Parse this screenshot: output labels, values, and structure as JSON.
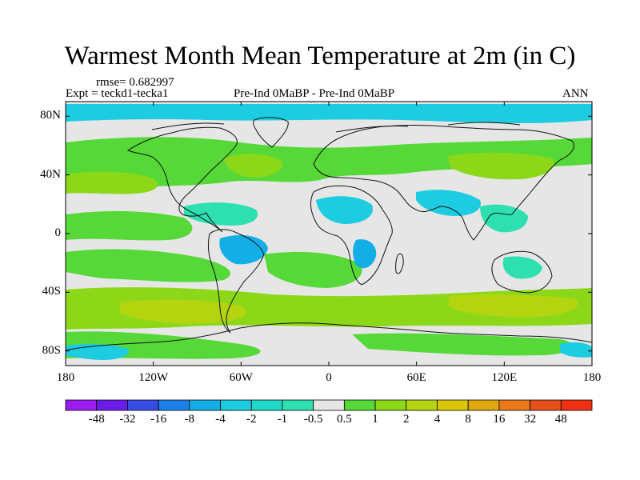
{
  "title": "Warmest Month Mean Temperature at 2m (in C)",
  "rmse": "rmse= 0.682997",
  "expt": "Expt = teckd1-tecka1",
  "center_label": "Pre-Ind 0MaBP - Pre-Ind 0MaBP",
  "right_label": "ANN",
  "lat_ticks": [
    "80N",
    "40N",
    "0",
    "40S",
    "80S"
  ],
  "lon_ticks": [
    "180",
    "120W",
    "60W",
    "0",
    "60E",
    "120E",
    "180"
  ],
  "colorbar": {
    "labels": [
      "-48",
      "-32",
      "-16",
      "-8",
      "-4",
      "-2",
      "-1",
      "-0.5",
      "0.5",
      "1",
      "2",
      "4",
      "8",
      "16",
      "32",
      "48"
    ],
    "colors": [
      "#9b1cf0",
      "#6a1ce8",
      "#3a4ce6",
      "#1d80e6",
      "#14aee6",
      "#1dcce0",
      "#20d8c8",
      "#2ee0b0",
      "#e6e6e6",
      "#55d838",
      "#8cd818",
      "#b4d410",
      "#d8c808",
      "#e0a810",
      "#e8781a",
      "#e8501a",
      "#f03010"
    ]
  },
  "colors": {
    "neutral": "#e6e6e6",
    "pos_small": "#55d838",
    "pos_medium": "#8cd818",
    "pos_large": "#b4d410",
    "neg_small": "#2ee0b0",
    "neg_medium": "#1dcce0",
    "neg_large": "#14aee6",
    "coast": "#111111"
  }
}
